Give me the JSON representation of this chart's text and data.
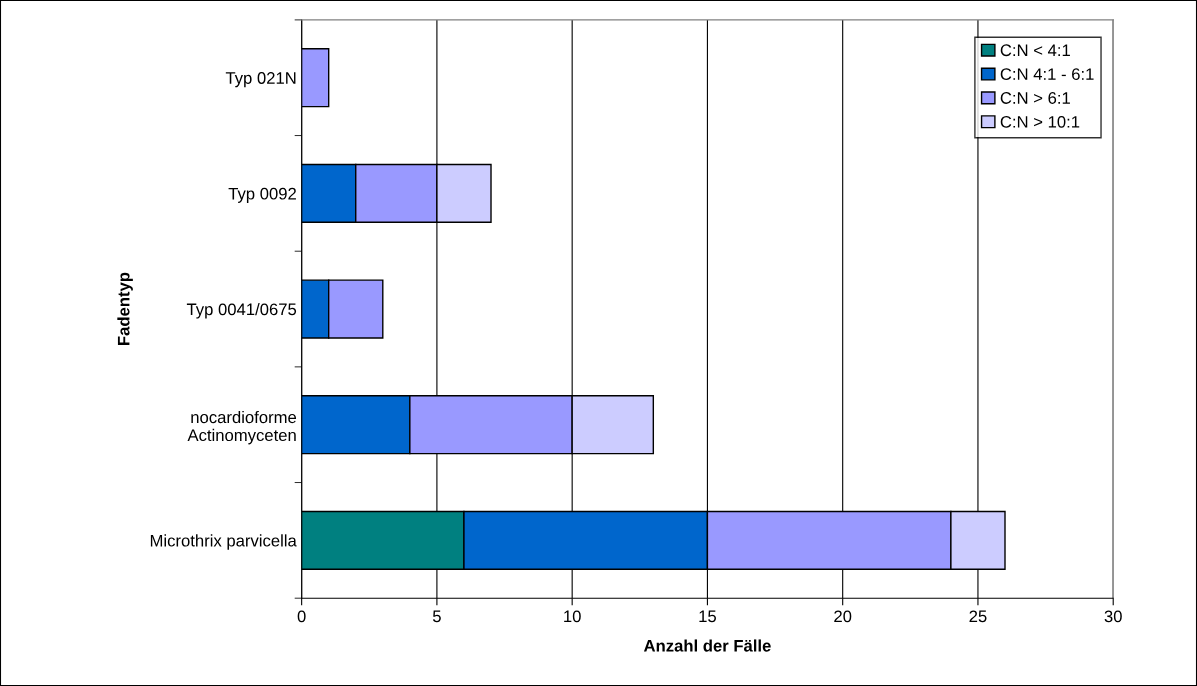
{
  "chart_data": {
    "type": "bar",
    "orientation": "horizontal",
    "stacked": true,
    "xlabel": "Anzahl der Fälle",
    "ylabel": "Fadentyp",
    "categories": [
      "Typ 021N",
      "Typ 0092",
      "Typ 0041/0675",
      "nocardioforme\nActinomyceten",
      "Microthrix parvicella"
    ],
    "series": [
      {
        "name": "C:N < 4:1",
        "color": "#008080",
        "values": [
          0,
          0,
          0,
          0,
          6
        ]
      },
      {
        "name": "C:N 4:1 - 6:1",
        "color": "#0066cc",
        "values": [
          0,
          2,
          1,
          4,
          9
        ]
      },
      {
        "name": "C:N > 6:1",
        "color": "#9999ff",
        "values": [
          1,
          3,
          2,
          6,
          9
        ]
      },
      {
        "name": "C:N > 10:1",
        "color": "#ccccff",
        "values": [
          0,
          2,
          0,
          3,
          2
        ]
      }
    ],
    "xlim": [
      0,
      30
    ],
    "xticks": [
      0,
      5,
      10,
      15,
      20,
      25,
      30
    ],
    "grid": "x",
    "legend": "top right"
  }
}
